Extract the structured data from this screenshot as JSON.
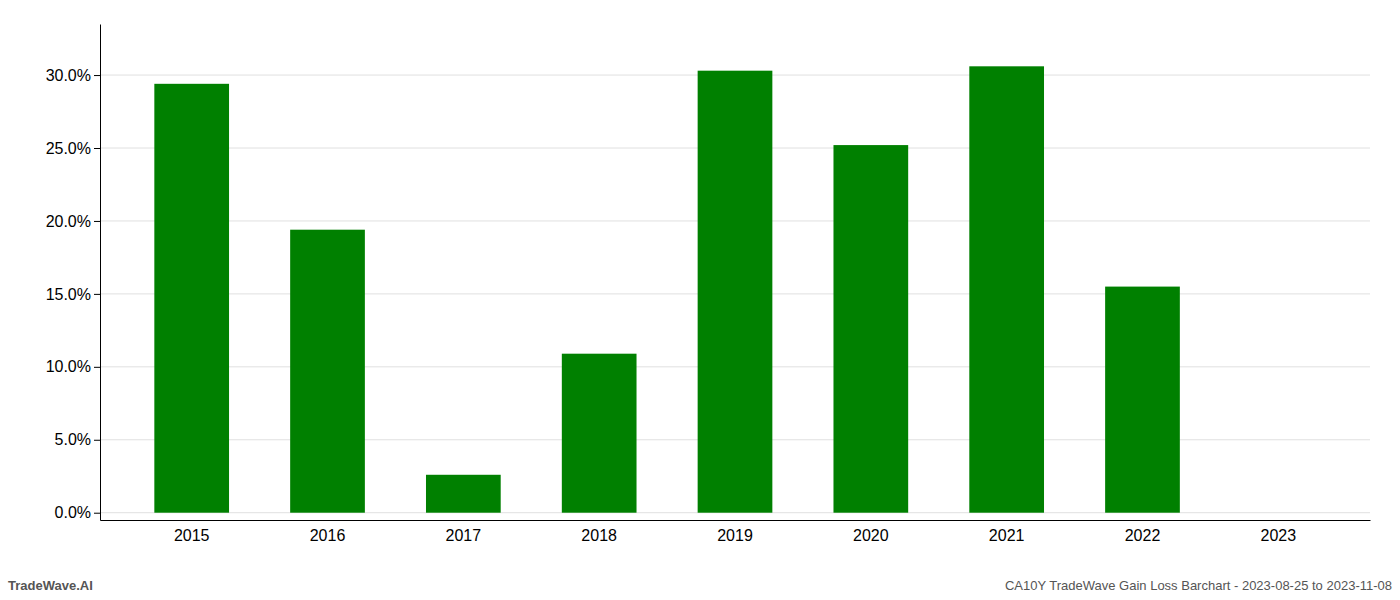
{
  "chart_data": {
    "type": "bar",
    "categories": [
      "2015",
      "2016",
      "2017",
      "2018",
      "2019",
      "2020",
      "2021",
      "2022",
      "2023"
    ],
    "values": [
      0.294,
      0.194,
      0.026,
      0.109,
      0.303,
      0.252,
      0.306,
      0.155,
      0.0
    ],
    "color": "#008000",
    "ylim": [
      -0.005,
      0.335
    ],
    "yticks": [
      {
        "value": 0.0,
        "label": "0.0%"
      },
      {
        "value": 0.05,
        "label": "5.0%"
      },
      {
        "value": 0.1,
        "label": "10.0%"
      },
      {
        "value": 0.15,
        "label": "15.0%"
      },
      {
        "value": 0.2,
        "label": "20.0%"
      },
      {
        "value": 0.25,
        "label": "25.0%"
      },
      {
        "value": 0.3,
        "label": "30.0%"
      }
    ],
    "grid": true,
    "annotations": [
      "TradeWave.AI",
      "CA10Y TradeWave Gain Loss Barchart - 2023-08-25 to 2023-11-08"
    ]
  }
}
